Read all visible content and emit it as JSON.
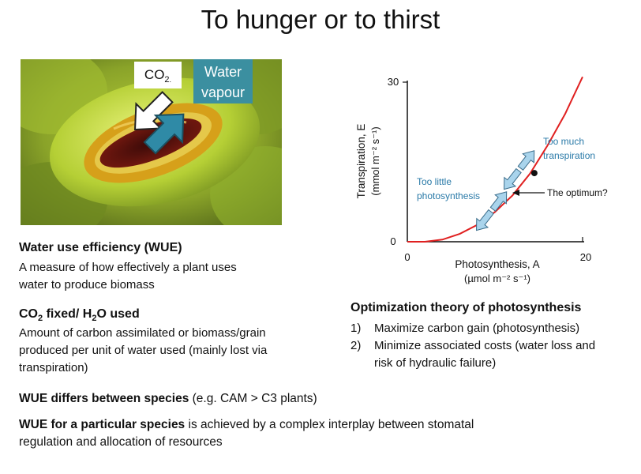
{
  "title": "To hunger or to thirst",
  "photo": {
    "co2_label": "CO",
    "co2_sub": "2",
    "water_label_line1": "Water",
    "water_label_line2": "vapour",
    "description_icon": "stomata-photo"
  },
  "left": {
    "wue_heading": "Water use efficiency (WUE)",
    "wue_line1": "A measure of how effectively a plant uses",
    "wue_line2": "water to produce biomass",
    "ratio_heading_a": "CO",
    "ratio_heading_sub_a": "2",
    "ratio_heading_b": " fixed/ H",
    "ratio_heading_sub_b": "2",
    "ratio_heading_c": "O used",
    "ratio_line1": "Amount of carbon assimilated or biomass/grain",
    "ratio_line2": "produced per unit of water used (mainly lost via",
    "ratio_line3": "transpiration)"
  },
  "bottom": {
    "species_bold": "WUE differs between species",
    "species_rest": " (e.g. CAM > C3 plants)",
    "particular_bold": "WUE for a particular species",
    "particular_rest1": " is achieved by a complex interplay between stomatal",
    "particular_rest2": "regulation and allocation of resources"
  },
  "optimization": {
    "title": "Optimization theory of photosynthesis",
    "items": [
      {
        "num": "1)",
        "line1": "Maximize carbon gain (photosynthesis)",
        "line2": ""
      },
      {
        "num": "2)",
        "line1": "Minimize associated costs (water loss and",
        "line2": "risk of hydraulic failure)"
      }
    ]
  },
  "colors": {
    "curve": "#e02020",
    "annotation": "#2a7aa8",
    "water_box": "#3b8fa0",
    "arrow_fill": "#a9d4ec"
  },
  "chart_data": {
    "type": "line",
    "xlabel_line1": "Photosynthesis, A",
    "xlabel_line2": "(µmol m⁻² s⁻¹)",
    "ylabel_line1": "Transpiration, E",
    "ylabel_line2": "(mmol m⁻² s⁻¹)",
    "xlim": [
      0,
      20
    ],
    "ylim": [
      0,
      30
    ],
    "x_ticks": [
      "0",
      "20"
    ],
    "y_ticks": [
      "0",
      "30"
    ],
    "series": [
      {
        "x": [
          0,
          2,
          4,
          6,
          8,
          10,
          12,
          14,
          16,
          18,
          19,
          20
        ],
        "y": [
          0,
          0,
          0.4,
          1.5,
          3.2,
          5.6,
          8.7,
          12.8,
          18.1,
          24.0,
          27.5,
          31.0
        ]
      }
    ],
    "optimum": {
      "x": 14.5,
      "y": 12.9
    },
    "annotations": {
      "optimum": "The optimum?",
      "too_little_1": "Too little",
      "too_little_2": "photosynthesis",
      "too_much_1": "Too much",
      "too_much_2": "transpiration"
    }
  }
}
